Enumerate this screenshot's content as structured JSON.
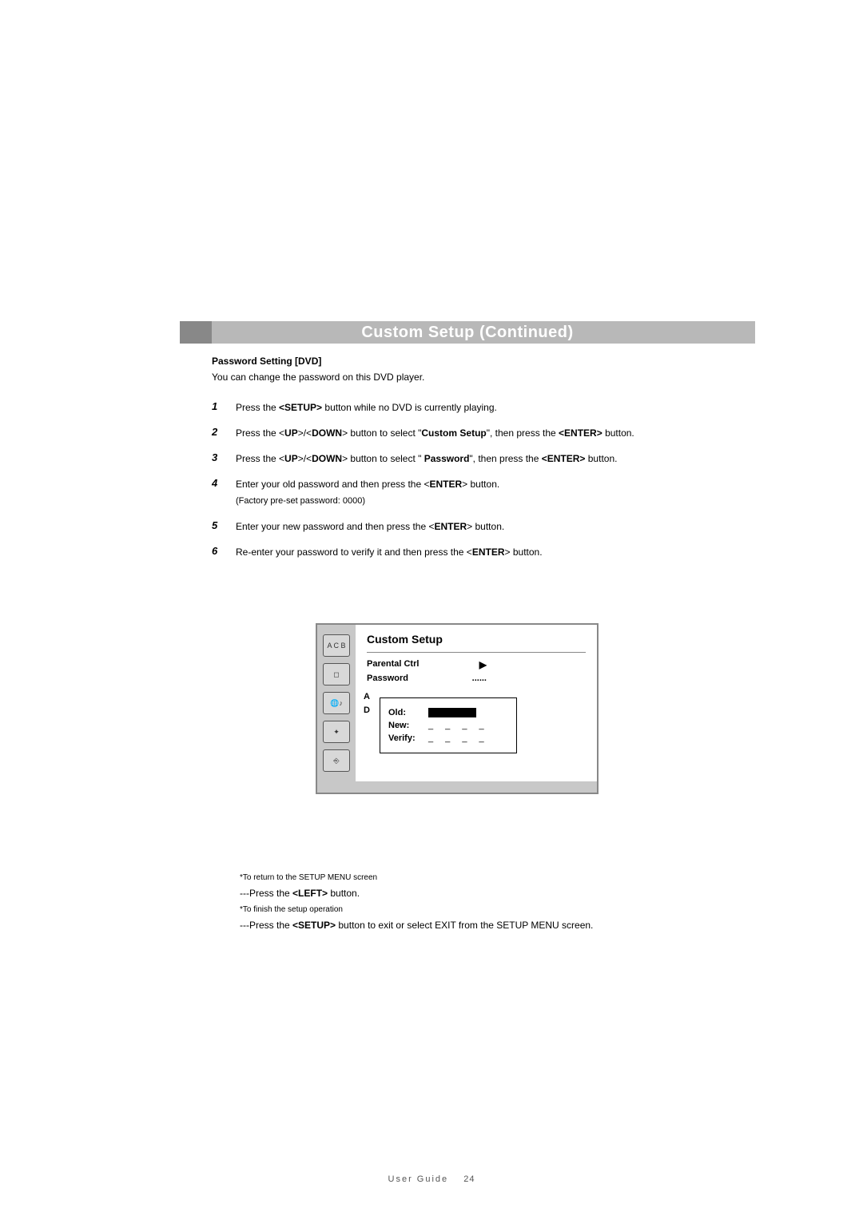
{
  "header": {
    "title": "Custom Setup (Continued)"
  },
  "section": {
    "title": "Password Setting [DVD]",
    "intro": "You can change the password on this DVD player."
  },
  "steps": [
    {
      "num": "1",
      "html": "Press the <b>&lt;SETUP&gt;</b> button while no DVD is currently playing."
    },
    {
      "num": "2",
      "html": "Press the &lt;<b>UP</b>&gt;/&lt;<b>DOWN</b>&gt; button to select \"<b>Custom Setup</b>\", then press the <b>&lt;ENTER&gt;</b> button."
    },
    {
      "num": "3",
      "html": "Press the &lt;<b>UP</b>&gt;/&lt;<b>DOWN</b>&gt; button to select \" <b>Password</b>\", then press the <b>&lt;ENTER&gt;</b> button."
    },
    {
      "num": "4",
      "html": "Enter your old password and then press the &lt;<b>ENTER</b>&gt; button.",
      "note": "(Factory pre-set password: 0000)"
    },
    {
      "num": "5",
      "html": "Enter your new password and then press the &lt;<b>ENTER</b>&gt; button."
    },
    {
      "num": "6",
      "html": "Re-enter your password to verify it and then press the &lt;<b>ENTER</b>&gt; button."
    }
  ],
  "osd": {
    "title": "Custom Setup",
    "menu": {
      "item1": "Parental Ctrl",
      "item1_arrow": "▶",
      "item2": "Password",
      "item2_value": "......"
    },
    "clipped_a": "A",
    "clipped_d": "D",
    "popup": {
      "old_label": "Old:",
      "new_label": "New:",
      "new_value": "_ _ _ _",
      "verify_label": "Verify:",
      "verify_value": "_ _ _ _"
    },
    "icons": {
      "i1": "A C B",
      "i2": "◻",
      "i3": "🌐♪",
      "i4": "✦",
      "i5": "⎆"
    }
  },
  "notes": {
    "n1_head": "*To return to the SETUP MENU screen",
    "n1_line_html": "---Press the <b>&lt;LEFT&gt;</b> button.",
    "n2_head": "*To finish the setup operation",
    "n2_line_html": "---Press the <b>&lt;SETUP&gt;</b> button to exit or select EXIT from the SETUP MENU screen."
  },
  "footer": {
    "label": "User Guide",
    "page": "24"
  }
}
